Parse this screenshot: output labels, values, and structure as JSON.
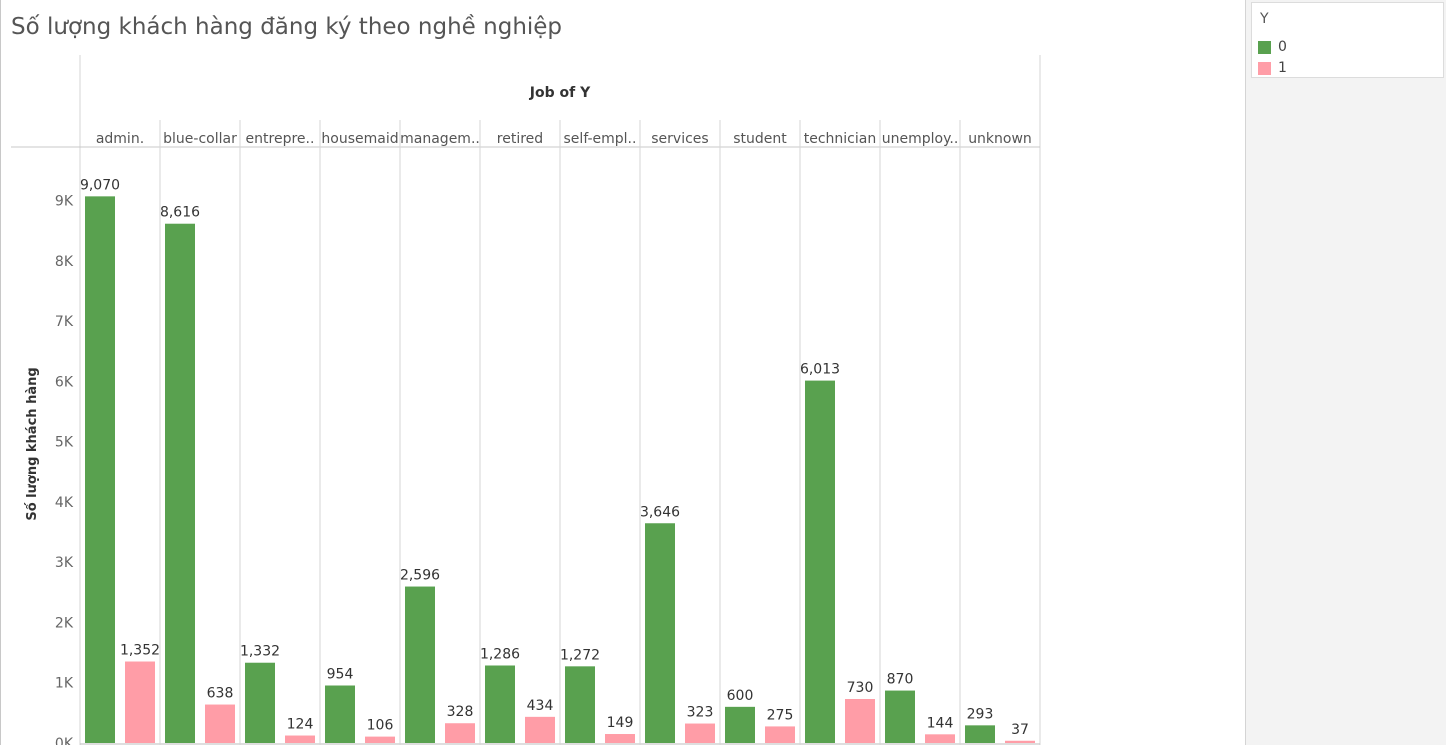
{
  "title": "Số lượng khách hàng đăng ký theo nghề nghiệp",
  "legend": {
    "title": "Y",
    "items": [
      {
        "label": "0",
        "color": "#59a14f"
      },
      {
        "label": "1",
        "color": "#ff9da7"
      }
    ]
  },
  "chart_data": {
    "type": "bar",
    "title": "Số lượng khách hàng đăng ký theo nghề nghiệp",
    "column_header": "Job of Y",
    "ylabel": "Số lượng khách hàng",
    "categories": [
      "admin.",
      "blue-collar",
      "entrepre..",
      "housemaid",
      "managem..",
      "retired",
      "self-empl..",
      "services",
      "student",
      "technician",
      "unemploy..",
      "unknown"
    ],
    "series": [
      {
        "name": "0",
        "color": "#59a14f",
        "values": [
          9070,
          8616,
          1332,
          954,
          2596,
          1286,
          1272,
          3646,
          600,
          6013,
          870,
          293
        ]
      },
      {
        "name": "1",
        "color": "#ff9da7",
        "values": [
          1352,
          638,
          124,
          106,
          328,
          434,
          149,
          323,
          275,
          730,
          144,
          37
        ]
      }
    ],
    "ylim": [
      0,
      9500
    ],
    "yticks": [
      0,
      1000,
      2000,
      3000,
      4000,
      5000,
      6000,
      7000,
      8000,
      9000
    ],
    "ytick_labels": [
      "0K",
      "1K",
      "2K",
      "3K",
      "4K",
      "5K",
      "6K",
      "7K",
      "8K",
      "9K"
    ],
    "legend_position": "top-right",
    "grid": false
  }
}
